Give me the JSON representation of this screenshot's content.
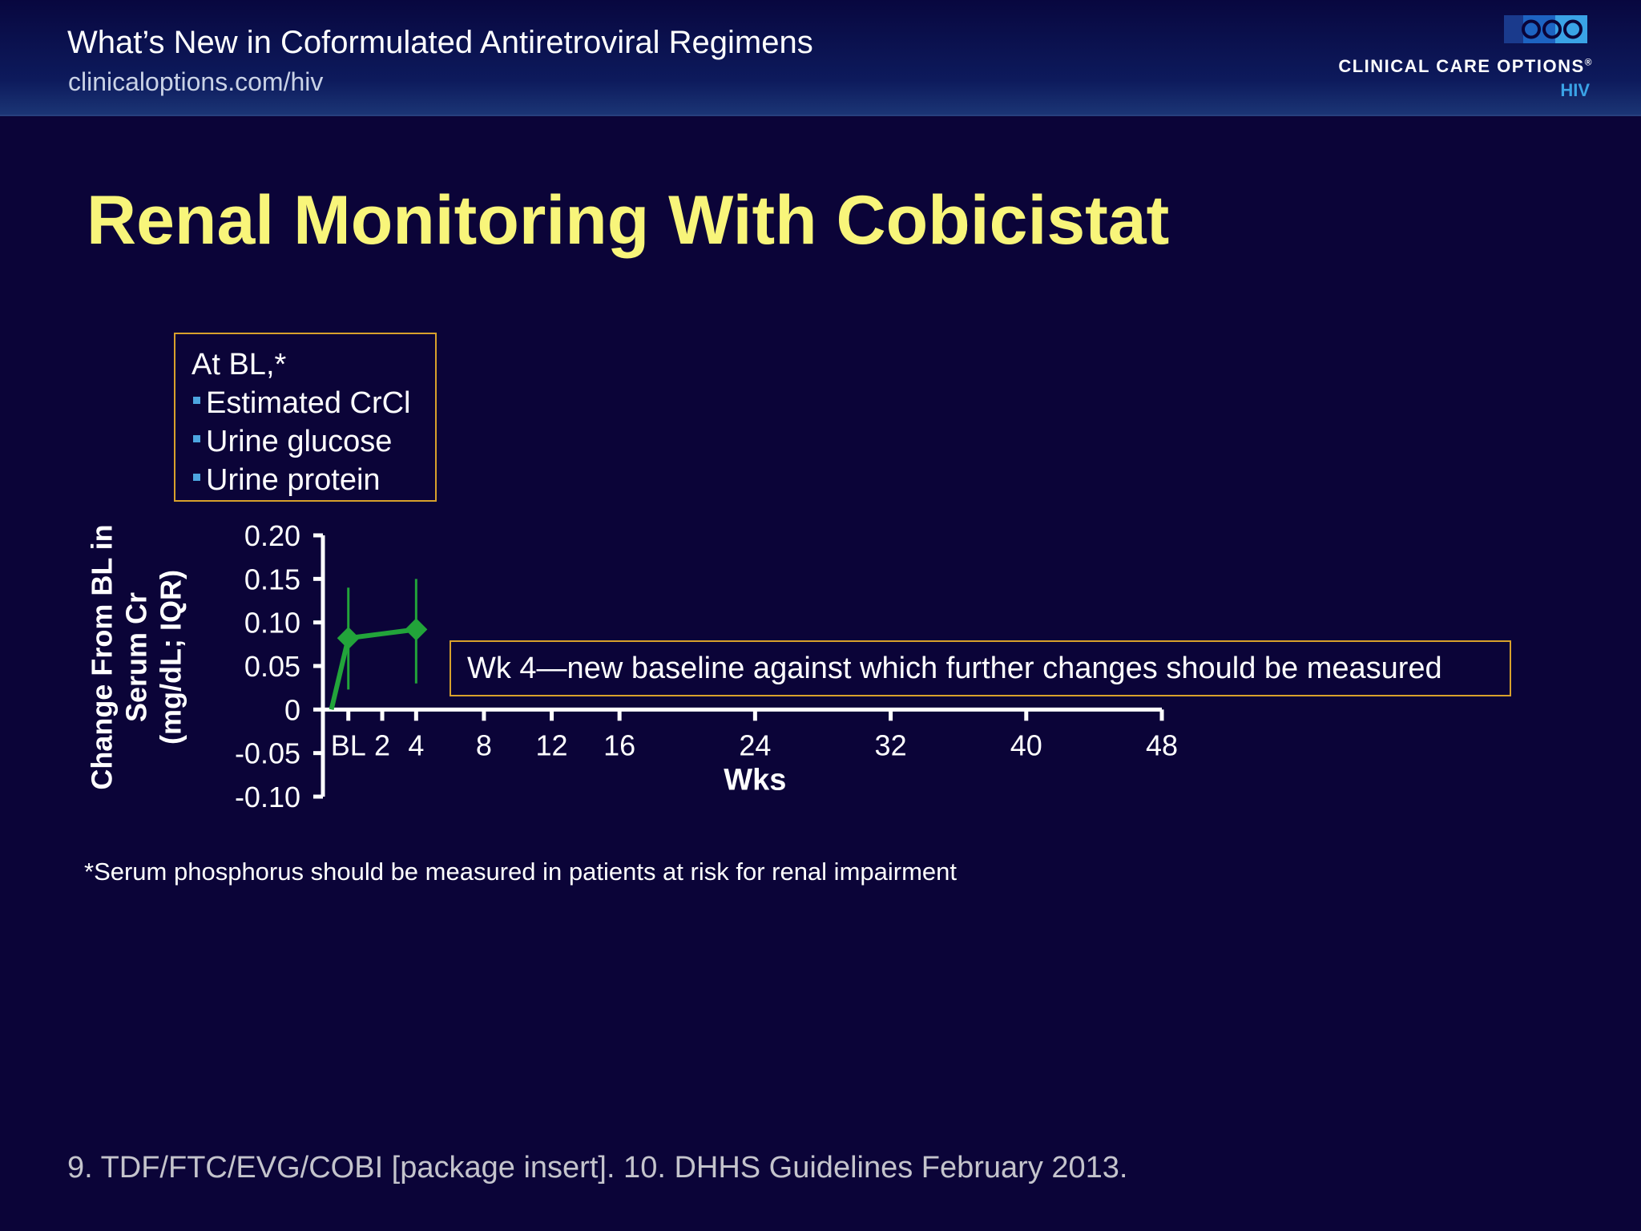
{
  "header": {
    "title": "What’s New in Coformulated Antiretroviral Regimens",
    "url": "clinicaloptions.com/hiv"
  },
  "logo": {
    "name": "CLINICAL CARE OPTIONS",
    "registered": "®",
    "section": "HIV",
    "icon": "cco-logo-icon"
  },
  "slide": {
    "title": "Renal Monitoring With Cobicistat"
  },
  "info_box": {
    "heading": "At BL,*",
    "items": [
      "Estimated CrCl",
      "Urine glucose",
      "Urine protein"
    ]
  },
  "annotation": "Wk 4—new baseline against which further changes should be measured",
  "footnote": "*Serum phosphorus should be measured in patients at risk for renal impairment",
  "reference": "9. TDF/FTC/EVG/COBI [package insert]. 10. DHHS Guidelines February 2013.",
  "colors": {
    "background": "#0b0438",
    "title": "#f8f57a",
    "series": "#22a43a",
    "box_border": "#d8a12c",
    "bullet": "#4da6e0"
  },
  "chart_data": {
    "type": "line",
    "xlabel": "Wks",
    "ylabel_lines": [
      "Change From BL in",
      "Serum Cr",
      "(mg/dL; IQR)"
    ],
    "x_ticks": [
      0,
      2,
      4,
      8,
      12,
      16,
      24,
      32,
      40,
      48
    ],
    "x_tick_labels": [
      "BL",
      "2",
      "4",
      "8",
      "12",
      "16",
      "24",
      "32",
      "40",
      "48"
    ],
    "xlim": [
      -1.5,
      48
    ],
    "y_ticks": [
      0.2,
      0.15,
      0.1,
      0.05,
      0,
      -0.05,
      -0.1
    ],
    "y_tick_labels": [
      "0.20",
      "0.15",
      "0.10",
      "0.05",
      "0",
      "-0.05",
      "-0.10"
    ],
    "ylim": [
      -0.1,
      0.2
    ],
    "grid": false,
    "series": [
      {
        "x": [
          -1,
          0,
          2,
          4
        ],
        "y": [
          0.0,
          0.082,
          0.087,
          0.092
        ],
        "iqr_low": [
          null,
          0.023,
          null,
          0.03
        ],
        "iqr_high": [
          null,
          0.14,
          null,
          0.15
        ],
        "markers": [
          false,
          true,
          false,
          true
        ]
      }
    ]
  }
}
